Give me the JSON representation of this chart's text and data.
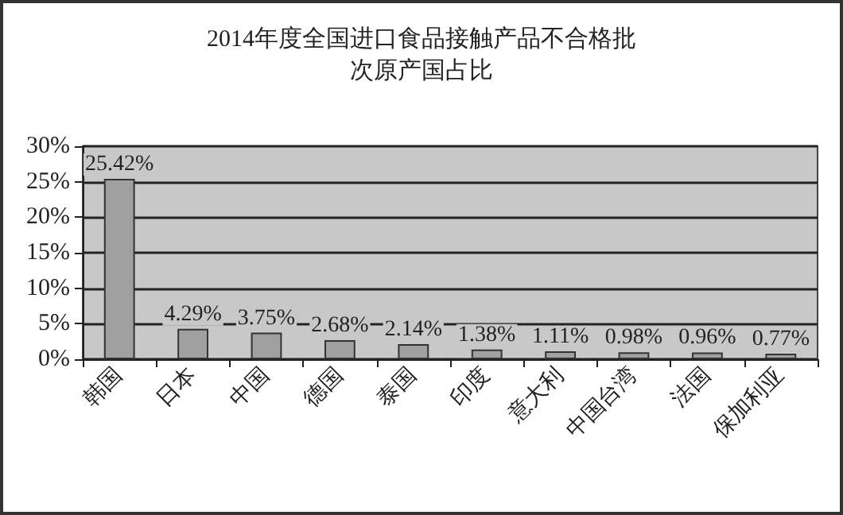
{
  "chart_data": {
    "type": "bar",
    "title": "2014年度全国进口食品接触产品不合格批次原产国占比",
    "categories": [
      "韩国",
      "日本",
      "中国",
      "德国",
      "泰国",
      "印度",
      "意大利",
      "中国台湾",
      "法国",
      "保加利亚"
    ],
    "values": [
      25.42,
      4.29,
      3.75,
      2.68,
      2.14,
      1.38,
      1.11,
      0.98,
      0.96,
      0.77
    ],
    "color": "#a0a0a0",
    "value_labels": [
      "25.42%",
      "4.29%",
      "3.75%",
      "2.68%",
      "2.14%",
      "1.38%",
      "1.11%",
      "0.98%",
      "0.96%",
      "0.77%"
    ],
    "ylim": [
      0,
      30
    ],
    "yticks": [
      {
        "value": 0,
        "label": "0%"
      },
      {
        "value": 5,
        "label": "5%"
      },
      {
        "value": 10,
        "label": "10%"
      },
      {
        "value": 15,
        "label": "15%"
      },
      {
        "value": 20,
        "label": "20%"
      },
      {
        "value": 25,
        "label": "25%"
      },
      {
        "value": 30,
        "label": "30%"
      }
    ],
    "grid": "y"
  }
}
